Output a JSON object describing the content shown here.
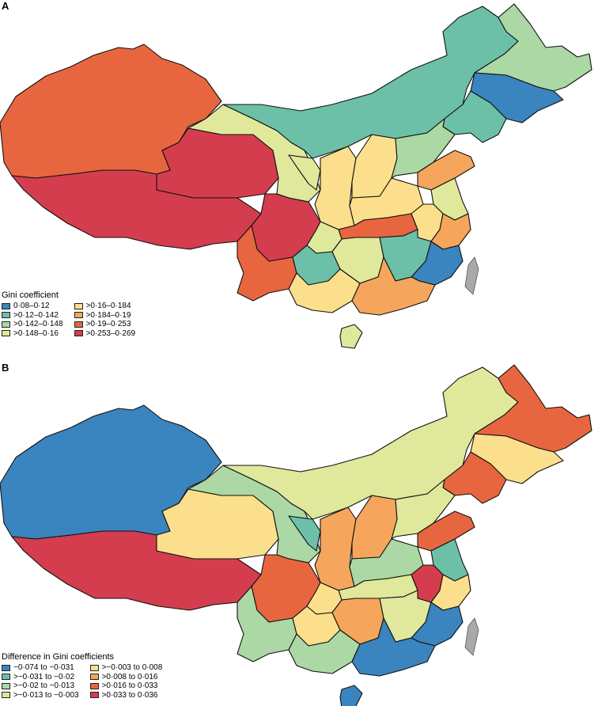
{
  "panelA": {
    "label": "A",
    "legend_title": "Gini coefficient",
    "classes": [
      {
        "label": "0·08–0·12",
        "color": "#3a84bf"
      },
      {
        "label": ">0·12–0·142",
        "color": "#6cc0a8"
      },
      {
        "label": ">0·142–0·148",
        "color": "#abd8a4"
      },
      {
        "label": ">0·148–0·16",
        "color": "#e0e89c"
      },
      {
        "label": ">0·16–0·184",
        "color": "#fbdf8c"
      },
      {
        "label": ">0·184–0·19",
        "color": "#f5a65c"
      },
      {
        "label": ">0·19–0·253",
        "color": "#e8663f"
      },
      {
        "label": ">0·253–0·269",
        "color": "#d43d4d"
      }
    ],
    "regions": {
      "xinjiang": 6,
      "tibet": 7,
      "qinghai": 7,
      "sichuan": 7,
      "yunnan": 6,
      "gansu": 3,
      "inner_mongolia": 1,
      "heilongjiang": 2,
      "jilin": 0,
      "liaoning": 1,
      "ningxia": 3,
      "shaanxi": 4,
      "shanxi": 4,
      "hebei": 2,
      "shandong": 5,
      "henan": 4,
      "jiangsu": 3,
      "hubei": 6,
      "anhui": 4,
      "chongqing": 3,
      "guizhou": 1,
      "hunan": 3,
      "jiangxi": 1,
      "zhejiang": 5,
      "fujian": 0,
      "guangxi": 4,
      "guangdong": 5,
      "hainan": 3
    }
  },
  "panelB": {
    "label": "B",
    "legend_title": "Difference in Gini coefficients",
    "classes": [
      {
        "label": "−0·074 to −0·031",
        "color": "#3a84bf"
      },
      {
        "label": ">−0·031 to −0·02",
        "color": "#6cc0a8"
      },
      {
        "label": ">−0·02 to −0·013",
        "color": "#abd8a4"
      },
      {
        "label": ">−0·013 to −0·003",
        "color": "#e0e89c"
      },
      {
        "label": ">−0·003 to 0·008",
        "color": "#fbdf8c"
      },
      {
        "label": ">0·008 to 0·016",
        "color": "#f5a65c"
      },
      {
        "label": ">0·016 to 0·033",
        "color": "#e8663f"
      },
      {
        "label": ">0·033 to 0·036",
        "color": "#d43d4d"
      }
    ],
    "regions": {
      "xinjiang": 0,
      "tibet": 7,
      "qinghai": 4,
      "sichuan": 6,
      "yunnan": 2,
      "gansu": 2,
      "inner_mongolia": 3,
      "heilongjiang": 6,
      "jilin": 4,
      "liaoning": 6,
      "ningxia": 1,
      "shaanxi": 5,
      "shanxi": 5,
      "hebei": 3,
      "shandong": 6,
      "henan": 2,
      "jiangsu": 1,
      "hubei": 3,
      "anhui": 7,
      "chongqing": 4,
      "guizhou": 4,
      "hunan": 5,
      "jiangxi": 3,
      "zhejiang": 4,
      "fujian": 0,
      "guangxi": 2,
      "guangdong": 0,
      "hainan": 0
    }
  }
}
